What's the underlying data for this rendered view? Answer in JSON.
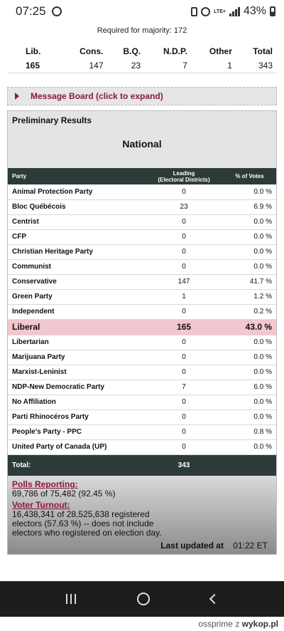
{
  "status_bar": {
    "time": "07:25",
    "battery": "43%",
    "network": "LTE+"
  },
  "majority": "Required for majority: 172",
  "summary": {
    "headers": [
      "Lib.",
      "Cons.",
      "B.Q.",
      "N.D.P.",
      "Other",
      "Total"
    ],
    "values": [
      "165",
      "147",
      "23",
      "7",
      "1",
      "343"
    ]
  },
  "message_board": "Message Board (click to expand)",
  "results": {
    "title": "Preliminary Results",
    "region": "National",
    "col_party": "Party",
    "col_leading_1": "Leading",
    "col_leading_2": "(Electoral Districts)",
    "col_pct": "% of Votes",
    "rows": [
      {
        "party": "Animal Protection Party",
        "leading": "0",
        "pct": "0.0 %"
      },
      {
        "party": "Bloc Québécois",
        "leading": "23",
        "pct": "6.9 %"
      },
      {
        "party": "Centrist",
        "leading": "0",
        "pct": "0.0 %"
      },
      {
        "party": "CFP",
        "leading": "0",
        "pct": "0.0 %"
      },
      {
        "party": "Christian Heritage Party",
        "leading": "0",
        "pct": "0.0 %"
      },
      {
        "party": "Communist",
        "leading": "0",
        "pct": "0.0 %"
      },
      {
        "party": "Conservative",
        "leading": "147",
        "pct": "41.7 %"
      },
      {
        "party": "Green Party",
        "leading": "1",
        "pct": "1.2 %"
      },
      {
        "party": "Independent",
        "leading": "0",
        "pct": "0.2 %"
      },
      {
        "party": "Liberal",
        "leading": "165",
        "pct": "43.0 %"
      },
      {
        "party": "Libertarian",
        "leading": "0",
        "pct": "0.0 %"
      },
      {
        "party": "Marijuana Party",
        "leading": "0",
        "pct": "0.0 %"
      },
      {
        "party": "Marxist-Leninist",
        "leading": "0",
        "pct": "0.0 %"
      },
      {
        "party": "NDP-New Democratic Party",
        "leading": "7",
        "pct": "6.0 %"
      },
      {
        "party": "No Affiliation",
        "leading": "0",
        "pct": "0.0 %"
      },
      {
        "party": "Parti Rhinocéros Party",
        "leading": "0",
        "pct": "0.0 %"
      },
      {
        "party": "People's Party - PPC",
        "leading": "0",
        "pct": "0.8 %"
      },
      {
        "party": "United Party of Canada (UP)",
        "leading": "0",
        "pct": "0.0 %"
      }
    ],
    "highlight_party": "Liberal",
    "total_label": "Total:",
    "total_value": "343"
  },
  "polls": {
    "heading": "Polls Reporting:",
    "text": "69,786 of 75,482 (92.45 %)"
  },
  "turnout": {
    "heading": "Voter Turnout:",
    "line1": "16,438,341 of 28,525,638 registered",
    "line2": "electors (57.63 %) -- does not include",
    "line3": "electors who registered on election day."
  },
  "updated": {
    "label": "Last updated at",
    "value": "01:22 ET"
  },
  "footer": {
    "user": "ossprime",
    "sep": "z",
    "site": "wykop.pl"
  },
  "colors": {
    "accent": "#8b1a3c",
    "header_bg": "#2d3a3a",
    "highlight": "#f2c7cf"
  }
}
